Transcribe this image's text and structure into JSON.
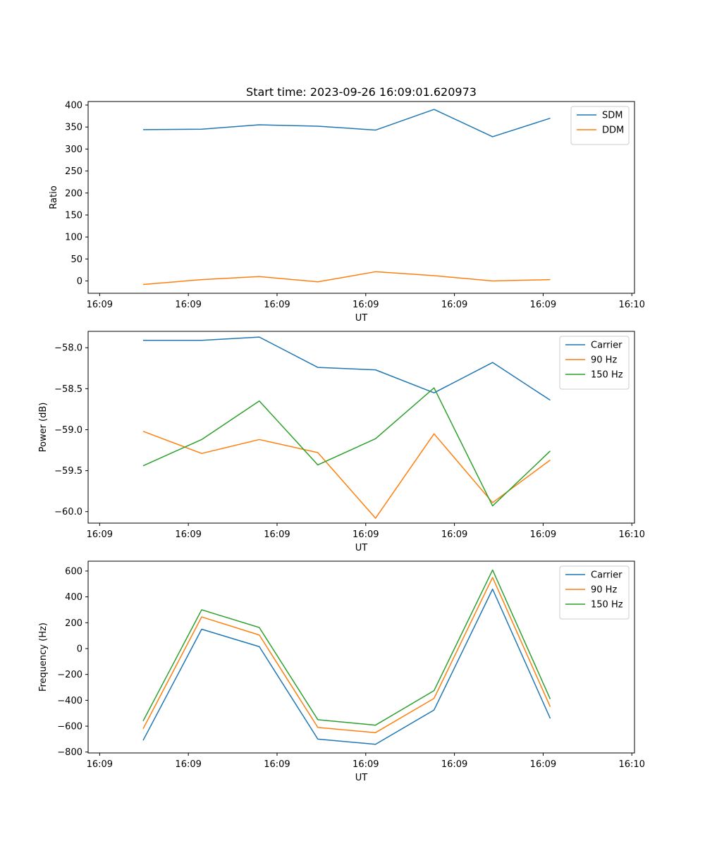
{
  "title": "Start time: 2023-09-26 16:09:01.620973",
  "chart_data": [
    {
      "type": "line",
      "ylabel": "Ratio",
      "xlabel": "UT",
      "x_ticks": [
        0,
        1,
        2,
        3,
        4,
        5,
        6
      ],
      "x_tick_labels": [
        "16:09",
        "16:09",
        "16:09",
        "16:09",
        "16:09",
        "16:09",
        "16:10"
      ],
      "xlim": [
        -0.13,
        6.03
      ],
      "ylim": [
        -28,
        408
      ],
      "y_ticks": [
        0,
        50,
        100,
        150,
        200,
        250,
        300,
        350,
        400
      ],
      "legend_position": "top-right",
      "x": [
        0.49,
        1.15,
        1.8,
        2.46,
        3.11,
        3.77,
        4.43,
        5.08
      ],
      "series": [
        {
          "name": "SDM",
          "color": "#1f77b4",
          "values": [
            344,
            345,
            355,
            352,
            343,
            390,
            328,
            370
          ]
        },
        {
          "name": "DDM",
          "color": "#ff7f0e",
          "values": [
            -8,
            3,
            10,
            -2,
            21,
            12,
            0,
            3
          ]
        }
      ]
    },
    {
      "type": "line",
      "ylabel": "Power (dB)",
      "xlabel": "UT",
      "x_ticks": [
        0,
        1,
        2,
        3,
        4,
        5,
        6
      ],
      "x_tick_labels": [
        "16:09",
        "16:09",
        "16:09",
        "16:09",
        "16:09",
        "16:09",
        "16:10"
      ],
      "xlim": [
        -0.13,
        6.03
      ],
      "ylim": [
        -60.14,
        -57.8
      ],
      "y_ticks": [
        -60.0,
        -59.5,
        -59.0,
        -58.5,
        -58.0
      ],
      "y_tick_labels": [
        "−60.0",
        "−59.5",
        "−59.0",
        "−58.5",
        "−58.0"
      ],
      "legend_position": "top-right",
      "x": [
        0.49,
        1.15,
        1.8,
        2.46,
        3.11,
        3.77,
        4.43,
        5.08
      ],
      "series": [
        {
          "name": "Carrier",
          "color": "#1f77b4",
          "values": [
            -57.91,
            -57.91,
            -57.87,
            -58.24,
            -58.27,
            -58.55,
            -58.18,
            -58.64
          ]
        },
        {
          "name": "90 Hz",
          "color": "#ff7f0e",
          "values": [
            -59.02,
            -59.29,
            -59.12,
            -59.28,
            -60.08,
            -59.05,
            -59.89,
            -59.37
          ]
        },
        {
          "name": "150 Hz",
          "color": "#2ca02c",
          "values": [
            -59.44,
            -59.12,
            -58.65,
            -59.43,
            -59.11,
            -58.49,
            -59.93,
            -59.26
          ]
        }
      ]
    },
    {
      "type": "line",
      "ylabel": "Frequency (Hz)",
      "xlabel": "UT",
      "x_ticks": [
        0,
        1,
        2,
        3,
        4,
        5,
        6
      ],
      "x_tick_labels": [
        "16:09",
        "16:09",
        "16:09",
        "16:09",
        "16:09",
        "16:09",
        "16:10"
      ],
      "xlim": [
        -0.13,
        6.03
      ],
      "ylim": [
        -807,
        676
      ],
      "y_ticks": [
        -800,
        -600,
        -400,
        -200,
        0,
        200,
        400,
        600
      ],
      "y_tick_labels": [
        "−800",
        "−600",
        "−400",
        "−200",
        "0",
        "200",
        "400",
        "600"
      ],
      "legend_position": "top-right",
      "x": [
        0.49,
        1.15,
        1.8,
        2.46,
        3.11,
        3.77,
        4.43,
        5.08
      ],
      "series": [
        {
          "name": "Carrier",
          "color": "#1f77b4",
          "values": [
            -710,
            150,
            15,
            -700,
            -740,
            -475,
            460,
            -540
          ]
        },
        {
          "name": "90 Hz",
          "color": "#ff7f0e",
          "values": [
            -620,
            245,
            105,
            -610,
            -650,
            -385,
            550,
            -450
          ]
        },
        {
          "name": "150 Hz",
          "color": "#2ca02c",
          "values": [
            -560,
            300,
            163,
            -550,
            -592,
            -325,
            608,
            -390
          ]
        }
      ]
    }
  ]
}
